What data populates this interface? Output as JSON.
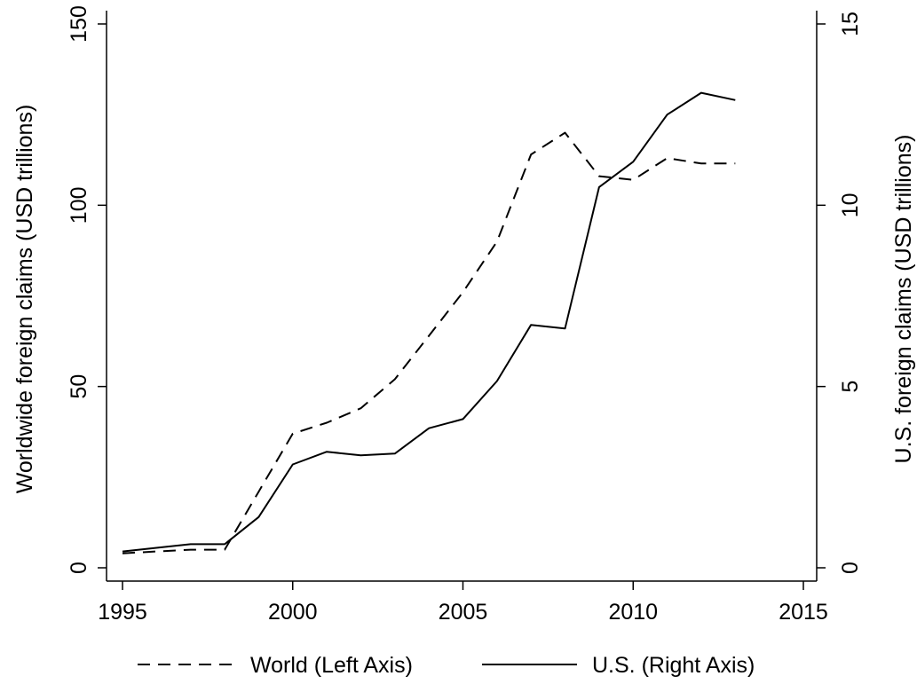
{
  "chart_data": {
    "type": "line",
    "title": "",
    "x": [
      1995,
      1996,
      1997,
      1998,
      1999,
      2000,
      2001,
      2002,
      2003,
      2004,
      2005,
      2006,
      2007,
      2008,
      2009,
      2010,
      2011,
      2012,
      2013
    ],
    "xlim": [
      1995,
      2015
    ],
    "xticks": [
      "1995",
      "2000",
      "2005",
      "2010",
      "2015"
    ],
    "y_left": {
      "label": "Worldwide foreign claims (USD trillions)",
      "lim": [
        0,
        150
      ],
      "ticks": [
        "0",
        "50",
        "100",
        "150"
      ]
    },
    "y_right": {
      "label": "U.S. foreign claims (USD trillions)",
      "lim": [
        0,
        15
      ],
      "ticks": [
        "0",
        "5",
        "10",
        "15"
      ]
    },
    "series": [
      {
        "name": "World (Left Axis)",
        "axis": "left",
        "style": "dashed",
        "color": "#000000",
        "values": [
          4,
          4.5,
          5,
          5,
          21,
          37,
          40,
          44,
          52,
          64,
          76,
          90,
          114,
          120,
          108,
          107,
          113,
          111.5,
          111.5
        ]
      },
      {
        "name": "U.S. (Right Axis)",
        "axis": "right",
        "style": "solid",
        "color": "#000000",
        "values": [
          0.45,
          0.55,
          0.65,
          0.65,
          1.4,
          2.85,
          3.2,
          3.1,
          3.15,
          3.85,
          4.1,
          5.15,
          6.7,
          6.6,
          10.5,
          11.2,
          12.5,
          13.1,
          12.9
        ]
      }
    ],
    "grid": false,
    "legend_position": "bottom"
  }
}
